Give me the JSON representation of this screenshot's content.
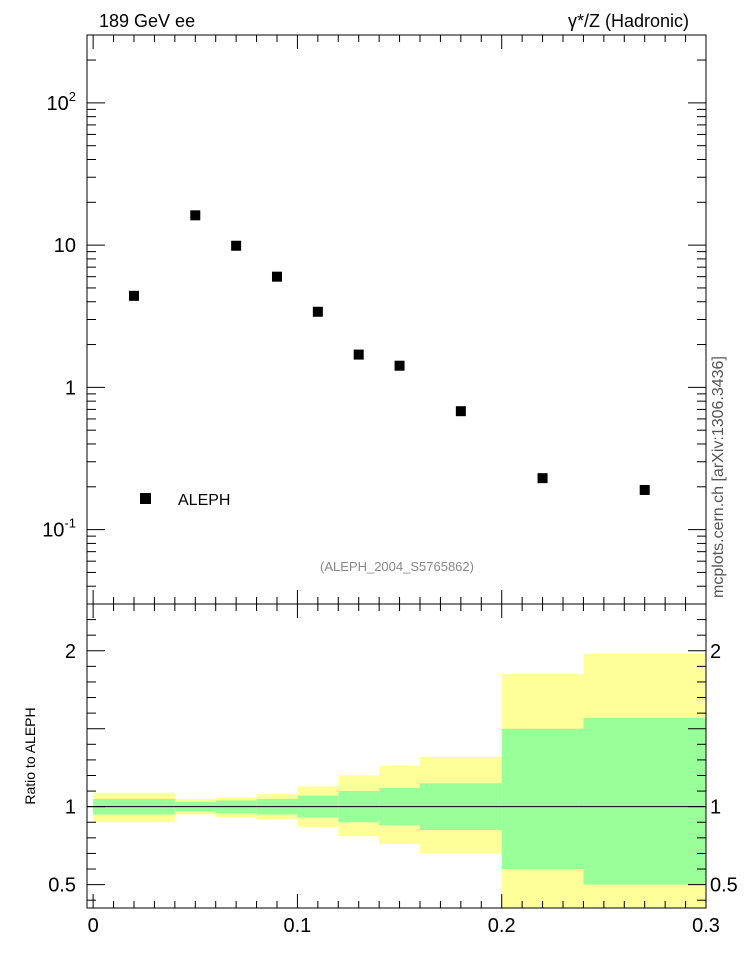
{
  "header": {
    "left": "189 GeV ee",
    "right": "γ*/Z (Hadronic)"
  },
  "side_label": "mcplots.cern.ch [arXiv:1306.3436]",
  "analysis_tag": "(ALEPH_2004_S5765862)",
  "colors": {
    "inner_band": "#99ff99",
    "outer_band": "#ffff99",
    "marker": "#000000",
    "tag_text": "#888888"
  },
  "chart_data": [
    {
      "type": "scatter",
      "yscale": "log",
      "ylim": [
        0.03,
        300
      ],
      "xlim": [
        -0.003,
        0.3
      ],
      "legend": {
        "placement": "bottom-left",
        "entries": [
          "ALEPH"
        ]
      },
      "ytick_labels": [
        "10^-1",
        "1",
        "10",
        "10^2"
      ],
      "series": [
        {
          "name": "ALEPH",
          "x": [
            0.02,
            0.05,
            0.07,
            0.09,
            0.11,
            0.13,
            0.15,
            0.18,
            0.22,
            0.27
          ],
          "y": [
            4.4,
            16.2,
            9.9,
            6.0,
            3.4,
            1.7,
            1.42,
            0.68,
            0.23,
            0.19
          ]
        }
      ]
    },
    {
      "type": "area",
      "ylabel": "Ratio to ALEPH",
      "ylim": [
        0.35,
        2.3
      ],
      "xlim": [
        -0.003,
        0.3
      ],
      "xtick_labels": [
        "0",
        "0.1",
        "0.2",
        "0.3"
      ],
      "ytick_labels": [
        "0.5",
        "1",
        "2"
      ],
      "reference_line": 1,
      "bins": [
        {
          "x0": 0.0,
          "x1": 0.04,
          "inner": [
            0.95,
            1.05
          ],
          "outer": [
            0.9,
            1.09
          ]
        },
        {
          "x0": 0.04,
          "x1": 0.06,
          "inner": [
            0.97,
            1.03
          ],
          "outer": [
            0.95,
            1.05
          ]
        },
        {
          "x0": 0.06,
          "x1": 0.08,
          "inner": [
            0.96,
            1.04
          ],
          "outer": [
            0.93,
            1.06
          ]
        },
        {
          "x0": 0.08,
          "x1": 0.1,
          "inner": [
            0.95,
            1.05
          ],
          "outer": [
            0.92,
            1.08
          ]
        },
        {
          "x0": 0.1,
          "x1": 0.12,
          "inner": [
            0.93,
            1.07
          ],
          "outer": [
            0.87,
            1.13
          ]
        },
        {
          "x0": 0.12,
          "x1": 0.14,
          "inner": [
            0.9,
            1.1
          ],
          "outer": [
            0.81,
            1.2
          ]
        },
        {
          "x0": 0.14,
          "x1": 0.16,
          "inner": [
            0.88,
            1.12
          ],
          "outer": [
            0.76,
            1.26
          ]
        },
        {
          "x0": 0.16,
          "x1": 0.2,
          "inner": [
            0.85,
            1.15
          ],
          "outer": [
            0.7,
            1.32
          ]
        },
        {
          "x0": 0.2,
          "x1": 0.24,
          "inner": [
            0.6,
            1.5
          ],
          "outer": [
            0.35,
            1.85
          ]
        },
        {
          "x0": 0.24,
          "x1": 0.3,
          "inner": [
            0.5,
            1.57
          ],
          "outer": [
            0.35,
            1.98
          ]
        }
      ]
    }
  ]
}
